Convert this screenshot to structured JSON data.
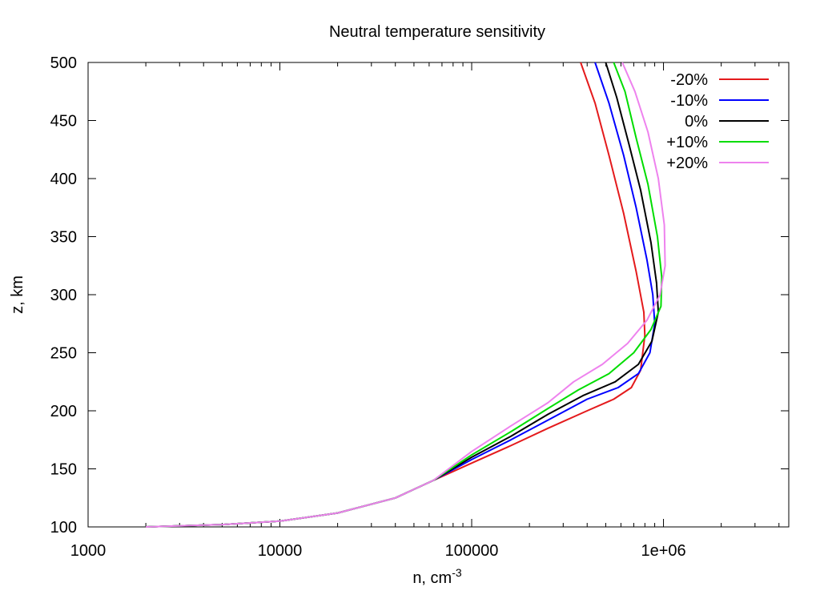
{
  "chart_data": {
    "type": "line",
    "title": "Neutral temperature sensitivity",
    "xlabel": "n, cm",
    "xlabel_sup": "-3",
    "ylabel": "z, km",
    "xscale": "log",
    "xlim": [
      1000,
      4500000
    ],
    "ylim": [
      100,
      500
    ],
    "xticks": [
      1000,
      10000,
      100000,
      1000000
    ],
    "xtick_labels": [
      "1000",
      "10000",
      "100000",
      "1e+06"
    ],
    "yticks": [
      100,
      150,
      200,
      250,
      300,
      350,
      400,
      450,
      500
    ],
    "ytick_labels": [
      "100",
      "150",
      "200",
      "250",
      "300",
      "350",
      "400",
      "450",
      "500"
    ],
    "grid": false,
    "legend_position": "top-right",
    "series": [
      {
        "name": "-20%",
        "color": "#e41a1c",
        "x": [
          2000,
          5000,
          10000,
          20000,
          40000,
          63000,
          100000,
          160000,
          250000,
          400000,
          550000,
          680000,
          760000,
          800000,
          790000,
          720000,
          620000,
          520000,
          440000,
          370000
        ],
        "y": [
          100,
          102,
          105,
          112,
          125,
          140,
          155,
          170,
          185,
          200,
          210,
          220,
          235,
          265,
          285,
          320,
          370,
          420,
          465,
          500
        ]
      },
      {
        "name": "-10%",
        "color": "#0000ff",
        "x": [
          2000,
          5000,
          10000,
          20000,
          40000,
          63000,
          100000,
          160000,
          250000,
          400000,
          580000,
          740000,
          850000,
          900000,
          880000,
          820000,
          720000,
          620000,
          520000,
          440000
        ],
        "y": [
          100,
          102,
          105,
          112,
          125,
          140,
          158,
          175,
          192,
          210,
          220,
          232,
          250,
          275,
          300,
          330,
          375,
          420,
          465,
          500
        ]
      },
      {
        "name": "0%",
        "color": "#000000",
        "x": [
          2000,
          5000,
          10000,
          20000,
          40000,
          63000,
          100000,
          160000,
          250000,
          380000,
          560000,
          740000,
          870000,
          940000,
          920000,
          860000,
          760000,
          660000,
          570000,
          500000
        ],
        "y": [
          100,
          102,
          105,
          112,
          125,
          140,
          160,
          178,
          197,
          213,
          225,
          240,
          260,
          285,
          310,
          345,
          390,
          430,
          470,
          500
        ]
      },
      {
        "name": "+10%",
        "color": "#00dd00",
        "x": [
          2000,
          5000,
          10000,
          20000,
          40000,
          63000,
          100000,
          160000,
          250000,
          360000,
          520000,
          700000,
          860000,
          970000,
          980000,
          930000,
          830000,
          720000,
          630000,
          550000
        ],
        "y": [
          100,
          102,
          105,
          112,
          125,
          140,
          162,
          182,
          202,
          218,
          232,
          250,
          270,
          290,
          315,
          350,
          395,
          435,
          475,
          500
        ]
      },
      {
        "name": "+20%",
        "color": "#ee82ee",
        "x": [
          2000,
          5000,
          10000,
          20000,
          40000,
          63000,
          100000,
          160000,
          250000,
          340000,
          480000,
          650000,
          820000,
          960000,
          1020000,
          1010000,
          940000,
          830000,
          710000,
          610000
        ],
        "y": [
          100,
          102,
          105,
          112,
          125,
          140,
          165,
          187,
          207,
          225,
          240,
          258,
          278,
          300,
          325,
          360,
          400,
          440,
          475,
          500
        ]
      }
    ]
  }
}
